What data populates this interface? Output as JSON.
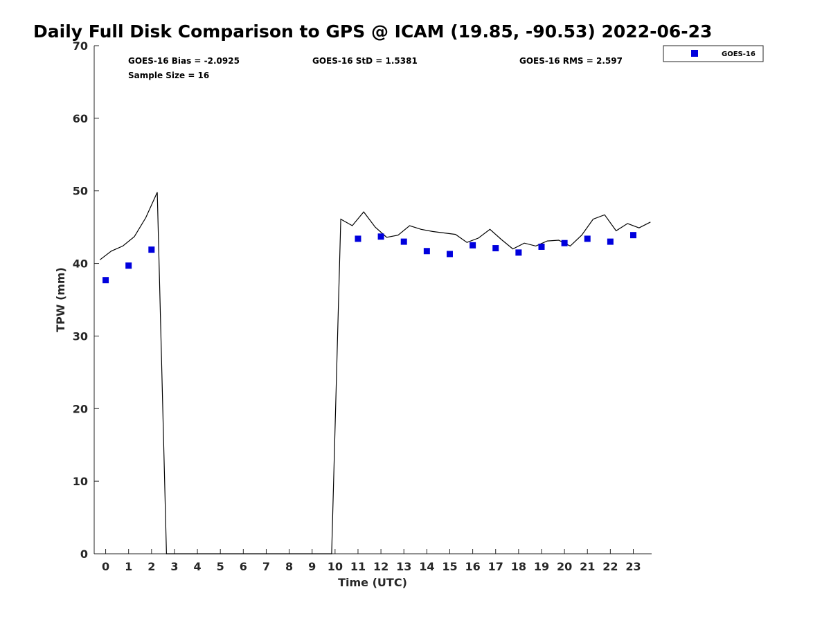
{
  "chart_data": {
    "type": "scatter",
    "title": "Daily Full Disk Comparison to GPS @ ICAM (19.85, -90.53) 2022-06-23",
    "xlabel": "Time (UTC)",
    "ylabel": "TPW (mm)",
    "xlim": [
      -0.5,
      23.8
    ],
    "ylim": [
      0,
      70
    ],
    "xticks": [
      0,
      1,
      2,
      3,
      4,
      5,
      6,
      7,
      8,
      9,
      10,
      11,
      12,
      13,
      14,
      15,
      16,
      17,
      18,
      19,
      20,
      21,
      22,
      23
    ],
    "yticks": [
      0,
      10,
      20,
      30,
      40,
      50,
      60,
      70
    ],
    "grid": false,
    "legend_position": "top-right",
    "stats": {
      "bias": "GOES-16 Bias = -2.0925",
      "std": "GOES-16 StD = 1.5381",
      "rms": "GOES-16 RMS = 2.597",
      "sample": "Sample Size = 16"
    },
    "series": [
      {
        "name": "GOES-16",
        "kind": "scatter",
        "marker": "square",
        "color": "#0000dd",
        "x": [
          0,
          1,
          2,
          11,
          12,
          13,
          14,
          15,
          16,
          17,
          18,
          19,
          20,
          21,
          22,
          23
        ],
        "y": [
          37.7,
          39.7,
          41.9,
          43.4,
          43.7,
          43.0,
          41.7,
          41.3,
          42.5,
          42.1,
          41.5,
          42.3,
          42.8,
          43.4,
          43.0,
          43.9
        ]
      },
      {
        "kind": "line",
        "color": "#000000",
        "x": [
          -0.25,
          0.25,
          0.75,
          1.25,
          1.75,
          2.25,
          2.65,
          9.85,
          10.25,
          10.75,
          11.25,
          11.75,
          12.25,
          12.75,
          13.25,
          13.75,
          14.25,
          14.75,
          15.25,
          15.75,
          16.25,
          16.75,
          17.25,
          17.75,
          18.25,
          18.75,
          19.25,
          19.75,
          20.25,
          20.75,
          21.25,
          21.75,
          22.25,
          22.75,
          23.25,
          23.75
        ],
        "y": [
          40.5,
          41.7,
          42.4,
          43.7,
          46.3,
          49.8,
          0,
          0,
          46.1,
          45.2,
          47.1,
          45.0,
          43.6,
          43.9,
          45.2,
          44.7,
          44.4,
          44.2,
          44.0,
          42.9,
          43.5,
          44.7,
          43.3,
          42.0,
          42.8,
          42.4,
          43.1,
          43.2,
          42.4,
          43.9,
          46.1,
          46.7,
          44.5,
          45.5,
          44.9,
          45.7
        ]
      }
    ]
  }
}
